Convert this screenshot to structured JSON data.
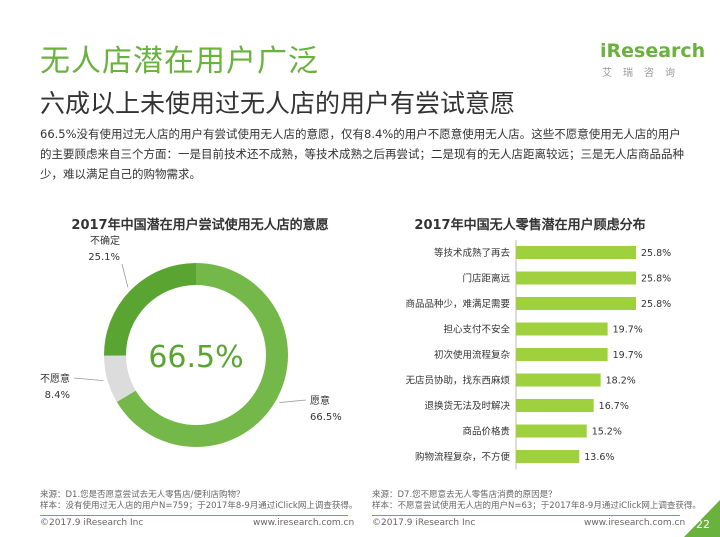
{
  "header": {
    "title": "无人店潜在用户广泛",
    "subtitle": "六成以上未使用过无人店的用户有尝试意愿",
    "logo_main": "iResearch",
    "logo_sub": "艾瑞咨询"
  },
  "intro": "66.5%没有使用过无人店的用户有尝试使用无人店的意愿，仅有8.4%的用户不愿意使用无人店。这些不愿意使用无人店的用户的主要顾虑来自三个方面：一是目前技术还不成熟，等技术成熟之后再尝试；二是现有的无人店距离较远；三是无人店商品品种少，难以满足自己的购物需求。",
  "colors": {
    "accent": "#6ab23e",
    "donut_main": "#74b84a",
    "donut_mid": "#5aa532",
    "donut_gray": "#dcdcdc",
    "bar": "#9ed13d"
  },
  "chart_data": [
    {
      "type": "pie",
      "title": "2017年中国潜在用户尝试使用无人店的意愿",
      "center_label": "66.5%",
      "slices": [
        {
          "label": "愿意",
          "value": 66.5,
          "value_label": "66.5%"
        },
        {
          "label": "不愿意",
          "value": 8.4,
          "value_label": "8.4%"
        },
        {
          "label": "不确定",
          "value": 25.1,
          "value_label": "25.1%"
        }
      ]
    },
    {
      "type": "bar",
      "orientation": "horizontal",
      "title": "2017年中国无人零售潜在用户顾虑分布",
      "categories": [
        "等技术成熟了再去",
        "门店距离远",
        "商品品种少，难满足需要",
        "担心支付不安全",
        "初次使用流程复杂",
        "无店员协助，找东西麻烦",
        "退换货无法及时解决",
        "商品价格贵",
        "购物流程复杂，不方便"
      ],
      "values": [
        25.8,
        25.8,
        25.8,
        19.7,
        19.7,
        18.2,
        16.7,
        15.2,
        13.6
      ],
      "value_labels": [
        "25.8%",
        "25.8%",
        "25.8%",
        "19.7%",
        "19.7%",
        "18.2%",
        "16.7%",
        "15.2%",
        "13.6%"
      ],
      "xlim": [
        0,
        25.8
      ]
    }
  ],
  "sources": {
    "left_1": "来源：D1.您是否愿意尝试去无人零售店/便利店购物？",
    "left_2": "样本：没有使用过无人店的用户N=759；于2017年8-9月通过iClick网上调查获得。",
    "right_1": "来源：D7.您不愿意去无人零售店消费的原因是？",
    "right_2": "样本：不愿意尝试使用无人店的用户N=63；于2017年8-9月通过iClick网上调查获得。"
  },
  "footer": {
    "copyright": "©2017.9 iResearch Inc",
    "url": "www.iresearch.com.cn",
    "page": "22"
  }
}
